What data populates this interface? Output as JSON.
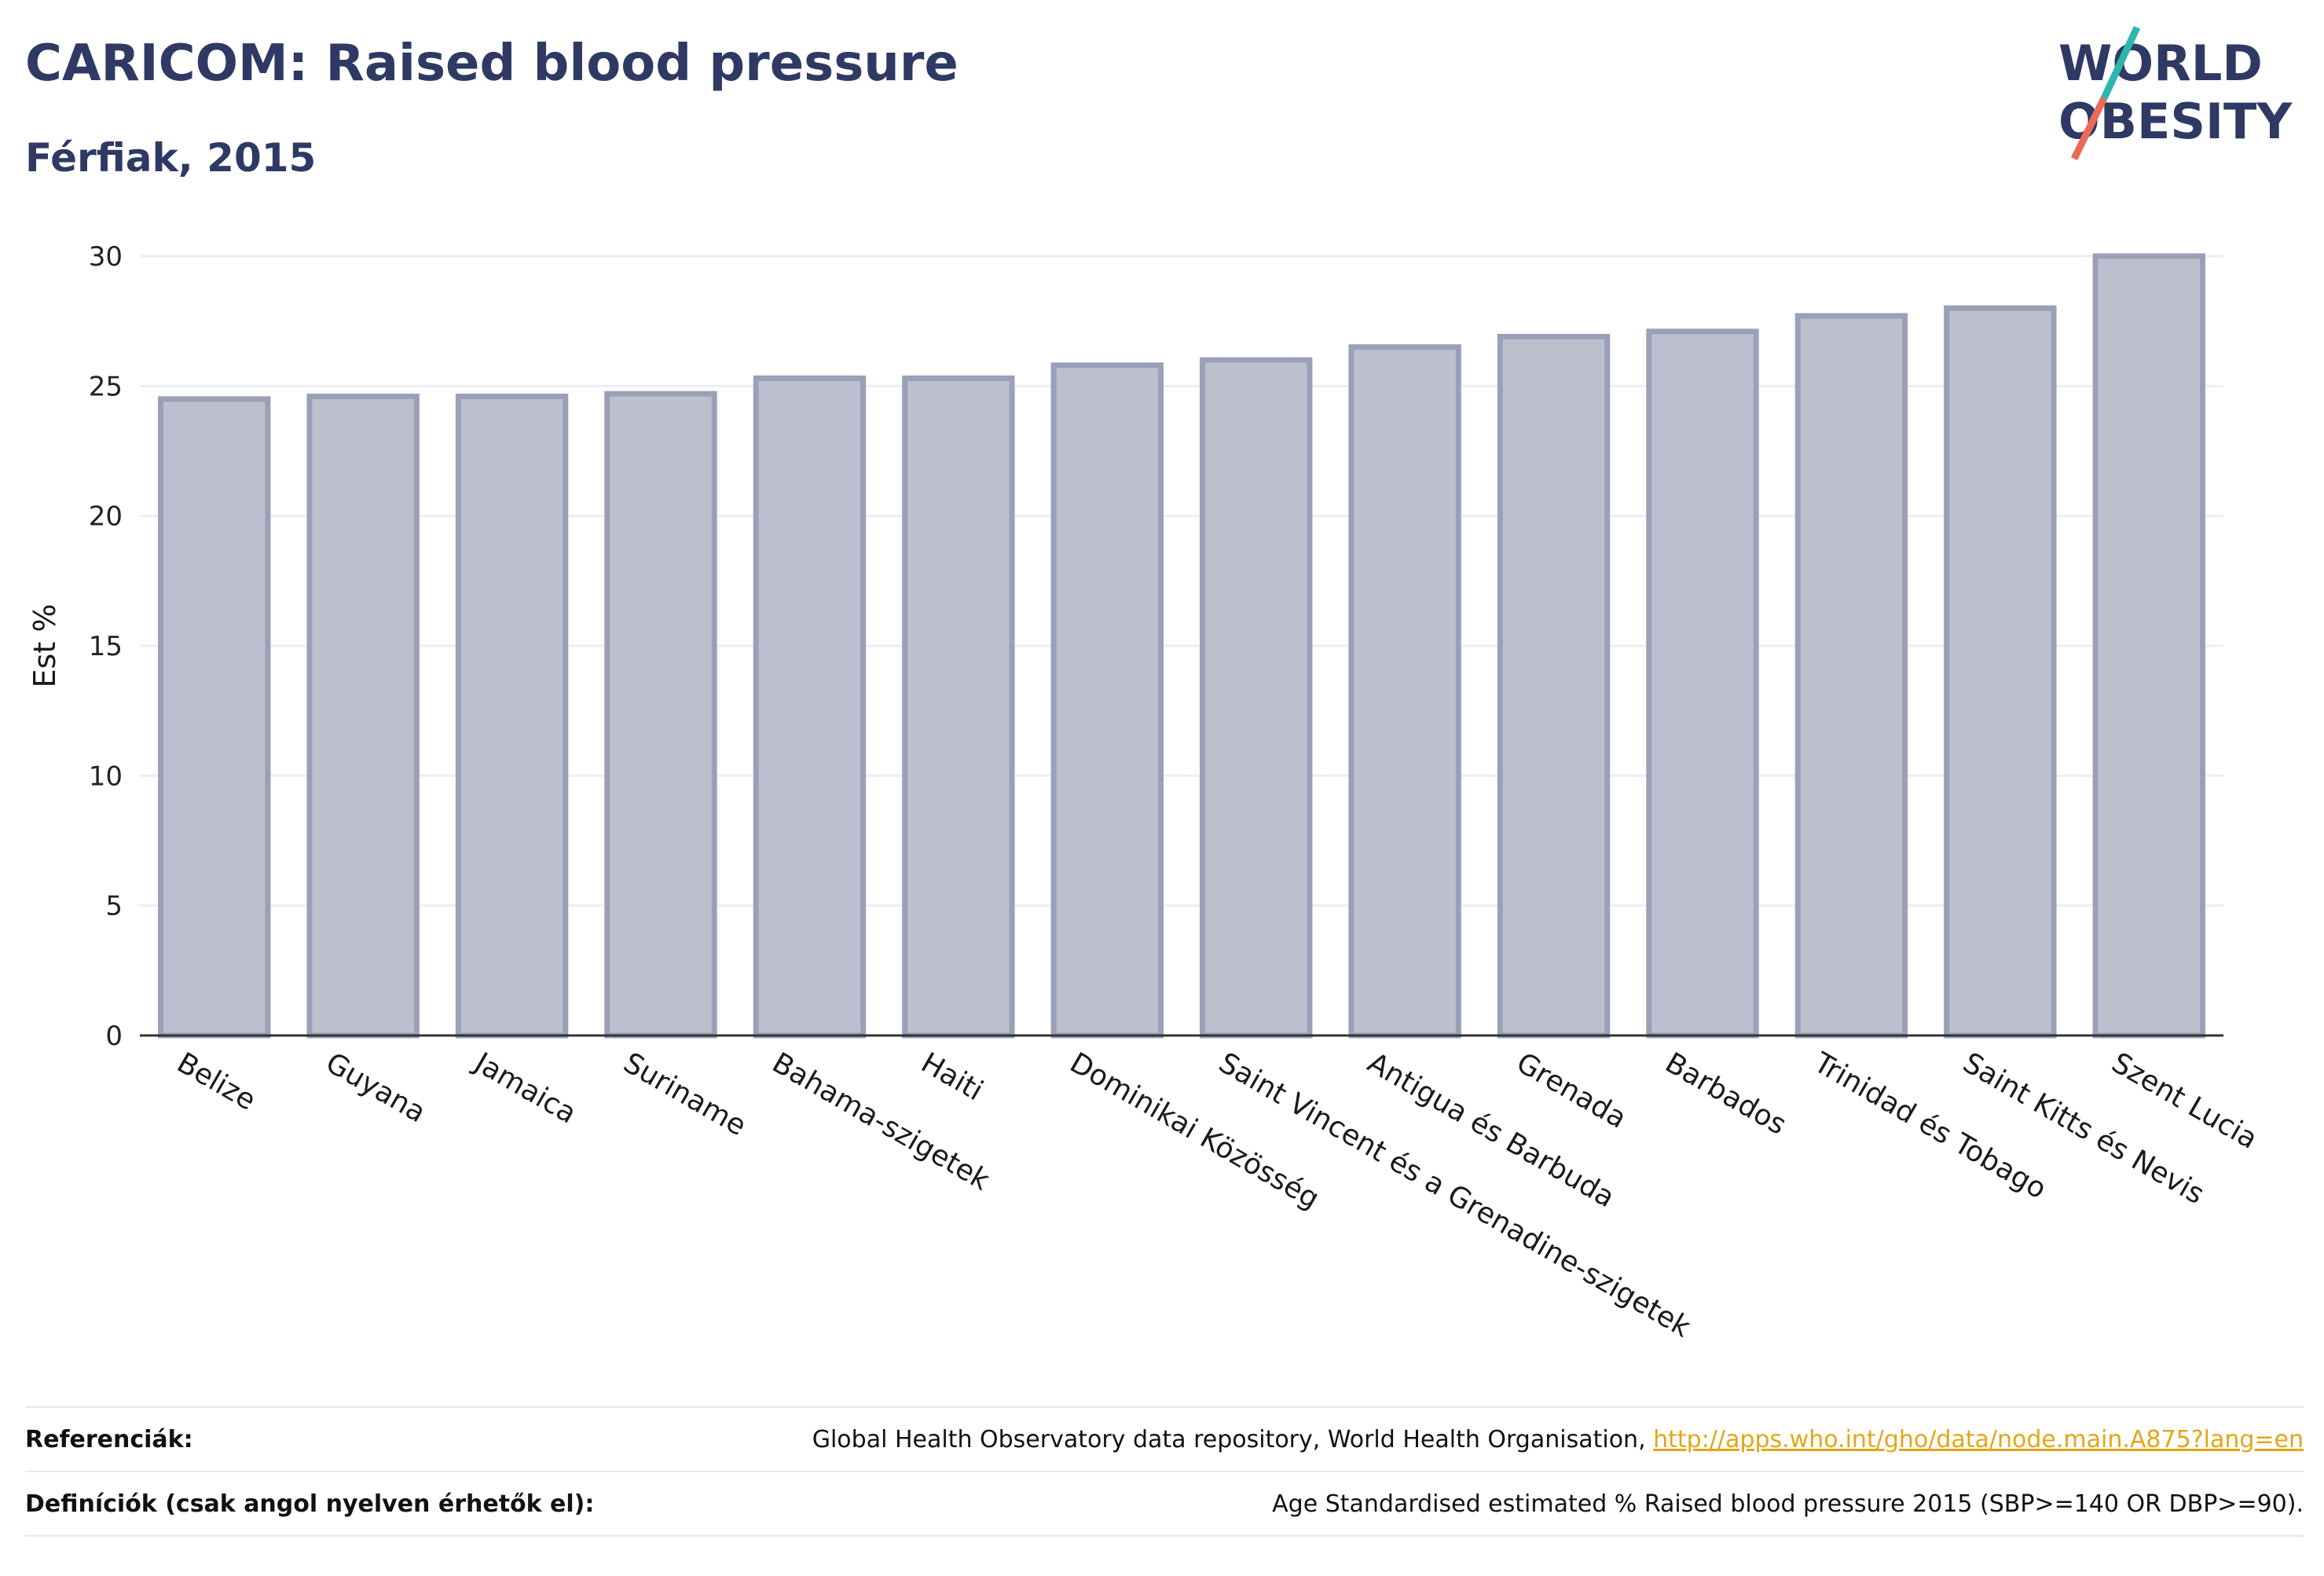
{
  "header": {
    "title": "CARICOM: Raised blood pressure",
    "subtitle": "Férfiak, 2015"
  },
  "logo": {
    "line1": "WORLD",
    "line2": "OBESITY",
    "icon": "world-obesity-logo"
  },
  "chart_data": {
    "type": "bar",
    "categories": [
      "Belize",
      "Guyana",
      "Jamaica",
      "Suriname",
      "Bahama-szigetek",
      "Haiti",
      "Dominikai Közösség",
      "Saint Vincent és a Grenadine-szigetek",
      "Antigua és Barbuda",
      "Grenada",
      "Barbados",
      "Trinidad és Tobago",
      "Saint Kitts és Nevis",
      "Szent Lucia"
    ],
    "values": [
      24.5,
      24.6,
      24.6,
      24.7,
      25.3,
      25.3,
      25.8,
      26.0,
      26.5,
      26.9,
      27.1,
      27.7,
      28.0,
      30.0
    ],
    "ylabel": "Est %",
    "xlabel": "",
    "ylim": [
      0,
      30
    ],
    "yticks": [
      0,
      5,
      10,
      15,
      20,
      25,
      30
    ],
    "grid": true,
    "colors": {
      "bar_fill": "#bcc0ce",
      "bar_stroke": "#9aa0b8",
      "axis": "#333333",
      "grid": "#eceef3"
    }
  },
  "footer": {
    "refs_label": "Referenciák:",
    "refs_text": "Global Health Observatory data repository, World Health Organisation, ",
    "refs_link": "http://apps.who.int/gho/data/node.main.A875?lang=en",
    "defs_label": "Definíciók (csak angol nyelven érhetők el):",
    "defs_text": "Age Standardised estimated % Raised blood pressure 2015 (SBP>=140 OR DBP>=90)."
  }
}
